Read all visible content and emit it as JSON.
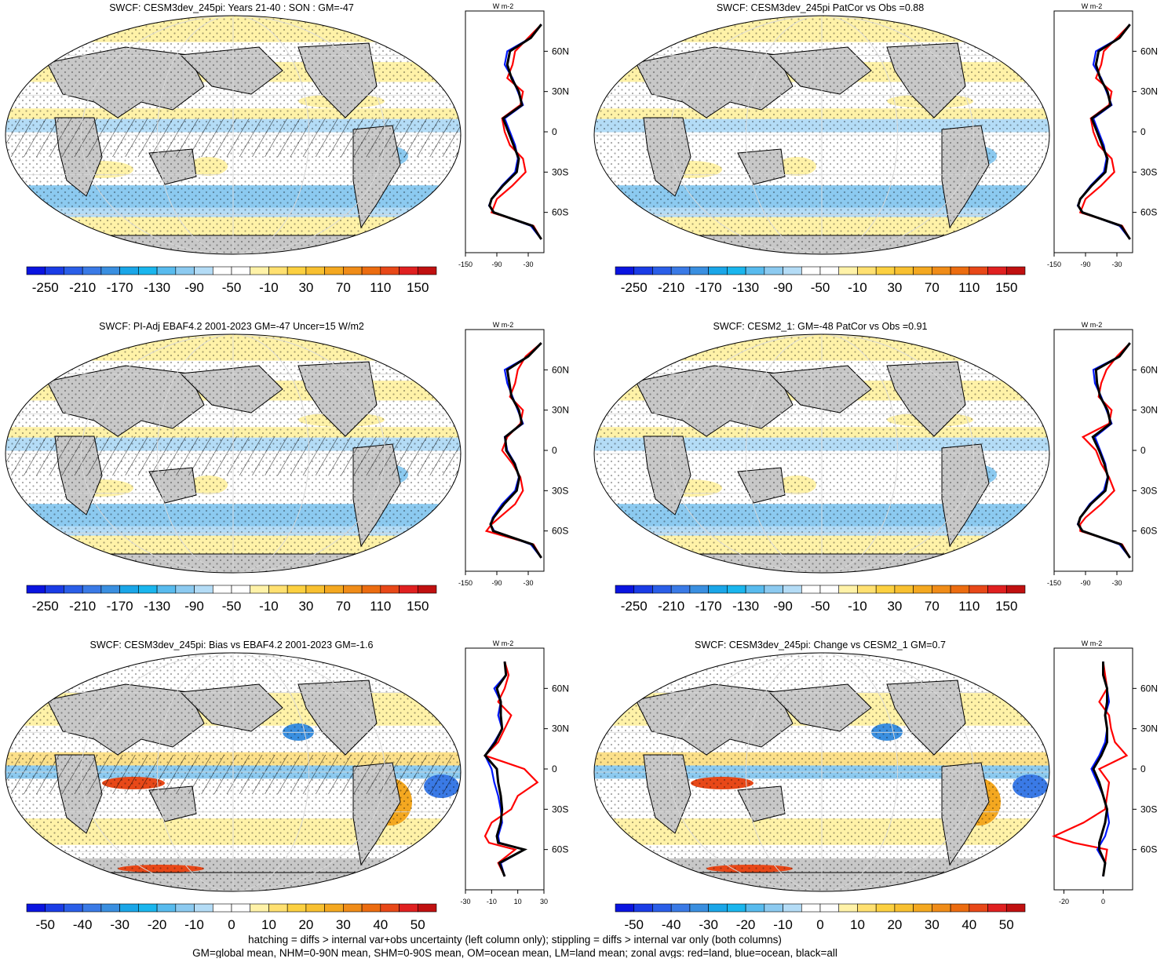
{
  "colors": {
    "scale_main": [
      "#0a14e0",
      "#1a3ce6",
      "#2a5ee8",
      "#3a7ae6",
      "#3a8fe0",
      "#1aa6e8",
      "#1ab6ee",
      "#58bbee",
      "#8ccaf0",
      "#b4dcf6",
      "#ffffff",
      "#ffffff",
      "#fff2a8",
      "#ffe070",
      "#fcd040",
      "#f8c030",
      "#f4a820",
      "#f08c18",
      "#ec6c10",
      "#e84818",
      "#e02020",
      "#c01010"
    ],
    "land": "#c8c8c8",
    "ocean_line": "#d8d8d8",
    "zonal_land": "#ff0000",
    "zonal_ocean": "#0018ff",
    "zonal_all": "#000000"
  },
  "panels": [
    {
      "id": "p1",
      "title": "SWCF: CESM3dev_245pi: Years 21-40 : SON : GM=-47",
      "colorbar_labels": [
        "-250",
        "-210",
        "-170",
        "-130",
        "-90",
        "-50",
        "-10",
        "30",
        "70",
        "110",
        "150"
      ],
      "zonal_units": "W m-2",
      "zonal_xticks": [
        "-150",
        "-90",
        "-30"
      ],
      "zonal_lat_ticks": [
        "60N",
        "30N",
        "0",
        "30S",
        "60S"
      ],
      "map_style": "mean",
      "hatched": true
    },
    {
      "id": "p2",
      "title": "SWCF: CESM3dev_245pi PatCor vs Obs =0.88",
      "colorbar_labels": [
        "-250",
        "-210",
        "-170",
        "-130",
        "-90",
        "-50",
        "-10",
        "30",
        "70",
        "110",
        "150"
      ],
      "zonal_units": "W m-2",
      "zonal_xticks": [
        "-150",
        "-90",
        "-30"
      ],
      "zonal_lat_ticks": [
        "60N",
        "30N",
        "0",
        "30S",
        "60S"
      ],
      "map_style": "mean",
      "hatched": false
    },
    {
      "id": "p3",
      "title": "SWCF: PI-Adj EBAF4.2 2001-2023 GM=-47 Uncer=15 W/m2",
      "colorbar_labels": [
        "-250",
        "-210",
        "-170",
        "-130",
        "-90",
        "-50",
        "-10",
        "30",
        "70",
        "110",
        "150"
      ],
      "zonal_units": "W m-2",
      "zonal_xticks": [
        "-150",
        "-90",
        "-30"
      ],
      "zonal_lat_ticks": [
        "60N",
        "30N",
        "0",
        "30S",
        "60S"
      ],
      "map_style": "mean",
      "hatched": true
    },
    {
      "id": "p4",
      "title": "SWCF: CESM2_1: GM=-48 PatCor vs Obs =0.91",
      "colorbar_labels": [
        "-250",
        "-210",
        "-170",
        "-130",
        "-90",
        "-50",
        "-10",
        "30",
        "70",
        "110",
        "150"
      ],
      "zonal_units": "W m-2",
      "zonal_xticks": [
        "-150",
        "-90",
        "-30"
      ],
      "zonal_lat_ticks": [
        "60N",
        "30N",
        "0",
        "30S",
        "60S"
      ],
      "map_style": "mean",
      "hatched": false
    },
    {
      "id": "p5",
      "title": "SWCF: CESM3dev_245pi: Bias vs EBAF4.2 2001-2023  GM=-1.6",
      "colorbar_labels": [
        "-50",
        "-40",
        "-30",
        "-20",
        "-10",
        "0",
        "10",
        "20",
        "30",
        "40",
        "50"
      ],
      "zonal_units": "W m-2",
      "zonal_xticks": [
        "-30",
        "-10",
        "10",
        "30"
      ],
      "zonal_lat_ticks": [
        "60N",
        "30N",
        "0",
        "30S",
        "60S"
      ],
      "map_style": "diff",
      "hatched": true
    },
    {
      "id": "p6",
      "title": "SWCF: CESM3dev_245pi: Change vs CESM2_1 GM=0.7",
      "colorbar_labels": [
        "-50",
        "-40",
        "-30",
        "-20",
        "-10",
        "0",
        "10",
        "20",
        "30",
        "40",
        "50"
      ],
      "zonal_units": "W m-2",
      "zonal_xticks": [
        "-20",
        "0"
      ],
      "zonal_lat_ticks": [
        "60N",
        "30N",
        "0",
        "30S",
        "60S"
      ],
      "map_style": "diff",
      "hatched": false
    }
  ],
  "footer": {
    "line1": "hatching = diffs > internal var+obs uncertainty (left column only); stippling = diffs > internal var only (both columns)",
    "line2": "GM=global mean, NHM=0-90N mean, SHM=0-90S mean, OM=ocean mean, LM=land mean; zonal avgs: red=land, blue=ocean, black=all"
  },
  "chart_data": [
    {
      "type": "heatmap",
      "title": "SWCF: CESM3dev_245pi: Years 21-40 : SON : GM=-47",
      "colorbar_ticks": [
        -250,
        -210,
        -170,
        -130,
        -90,
        -50,
        -10,
        30,
        70,
        110,
        150
      ],
      "zonal_mean": {
        "lat": [
          80,
          70,
          60,
          50,
          40,
          30,
          20,
          10,
          0,
          -10,
          -20,
          -30,
          -40,
          -50,
          -55,
          -60,
          -70,
          -80
        ],
        "series": [
          {
            "name": "land",
            "values": [
              -5,
              -30,
              -55,
              -60,
              -70,
              -40,
              -45,
              -80,
              -75,
              -65,
              -40,
              -35,
              -60,
              -90,
              -95,
              -100,
              -20,
              -5
            ]
          },
          {
            "name": "ocean",
            "values": [
              -5,
              -25,
              -70,
              -75,
              -60,
              -50,
              -40,
              -75,
              -65,
              -55,
              -50,
              -55,
              -80,
              -100,
              -105,
              -95,
              -25,
              -5
            ]
          },
          {
            "name": "all",
            "values": [
              -5,
              -25,
              -65,
              -70,
              -62,
              -48,
              -42,
              -78,
              -68,
              -58,
              -48,
              -52,
              -78,
              -100,
              -104,
              -96,
              -22,
              -5
            ]
          }
        ],
        "xlim": [
          -150,
          0
        ]
      }
    },
    {
      "type": "heatmap",
      "title": "SWCF: CESM3dev_245pi PatCor vs Obs =0.88",
      "colorbar_ticks": [
        -250,
        -210,
        -170,
        -130,
        -90,
        -50,
        -10,
        30,
        70,
        110,
        150
      ],
      "zonal_mean": {
        "lat": [
          80,
          70,
          60,
          50,
          40,
          30,
          20,
          10,
          0,
          -10,
          -20,
          -30,
          -40,
          -50,
          -55,
          -60,
          -70,
          -80
        ],
        "series": [
          {
            "name": "land",
            "values": [
              -5,
              -30,
              -55,
              -60,
              -70,
              -40,
              -45,
              -80,
              -75,
              -65,
              -40,
              -35,
              -60,
              -90,
              -95,
              -100,
              -20,
              -5
            ]
          },
          {
            "name": "ocean",
            "values": [
              -5,
              -25,
              -70,
              -75,
              -60,
              -50,
              -40,
              -75,
              -65,
              -55,
              -50,
              -55,
              -80,
              -100,
              -105,
              -95,
              -25,
              -5
            ]
          },
          {
            "name": "all",
            "values": [
              -5,
              -25,
              -65,
              -70,
              -62,
              -48,
              -42,
              -78,
              -68,
              -58,
              -48,
              -52,
              -78,
              -100,
              -104,
              -96,
              -22,
              -5
            ]
          }
        ],
        "xlim": [
          -150,
          0
        ]
      }
    },
    {
      "type": "heatmap",
      "title": "SWCF: PI-Adj EBAF4.2 2001-2023 GM=-47 Uncer=15 W/m2",
      "colorbar_ticks": [
        -250,
        -210,
        -170,
        -130,
        -90,
        -50,
        -10,
        30,
        70,
        110,
        150
      ],
      "zonal_mean": {
        "lat": [
          80,
          70,
          60,
          50,
          40,
          30,
          20,
          10,
          0,
          -10,
          -20,
          -30,
          -40,
          -50,
          -55,
          -60,
          -70,
          -80
        ],
        "series": [
          {
            "name": "land",
            "values": [
              -5,
              -35,
              -50,
              -55,
              -65,
              -40,
              -45,
              -70,
              -80,
              -60,
              -45,
              -40,
              -55,
              -85,
              -100,
              -110,
              -20,
              -5
            ]
          },
          {
            "name": "ocean",
            "values": [
              -5,
              -30,
              -75,
              -70,
              -60,
              -50,
              -40,
              -75,
              -70,
              -55,
              -48,
              -55,
              -80,
              -98,
              -102,
              -95,
              -25,
              -5
            ]
          },
          {
            "name": "all",
            "values": [
              -5,
              -30,
              -70,
              -66,
              -62,
              -48,
              -42,
              -74,
              -72,
              -56,
              -47,
              -52,
              -76,
              -96,
              -102,
              -97,
              -22,
              -5
            ]
          }
        ],
        "xlim": [
          -150,
          0
        ]
      }
    },
    {
      "type": "heatmap",
      "title": "SWCF: CESM2_1: GM=-48 PatCor vs Obs =0.91",
      "colorbar_ticks": [
        -250,
        -210,
        -170,
        -130,
        -90,
        -50,
        -10,
        30,
        70,
        110,
        150
      ],
      "zonal_mean": {
        "lat": [
          80,
          70,
          60,
          50,
          40,
          30,
          20,
          10,
          0,
          -10,
          -20,
          -30,
          -40,
          -50,
          -55,
          -60,
          -70,
          -80
        ],
        "series": [
          {
            "name": "land",
            "values": [
              -5,
              -30,
              -50,
              -60,
              -65,
              -40,
              -45,
              -95,
              -70,
              -60,
              -45,
              -35,
              -60,
              -90,
              -100,
              -100,
              -20,
              -5
            ]
          },
          {
            "name": "ocean",
            "values": [
              -5,
              -25,
              -75,
              -72,
              -60,
              -50,
              -40,
              -72,
              -62,
              -52,
              -48,
              -55,
              -82,
              -100,
              -105,
              -95,
              -25,
              -5
            ]
          },
          {
            "name": "all",
            "values": [
              -5,
              -25,
              -70,
              -68,
              -62,
              -48,
              -42,
              -76,
              -64,
              -54,
              -47,
              -52,
              -80,
              -100,
              -104,
              -96,
              -22,
              -5
            ]
          }
        ],
        "xlim": [
          -150,
          0
        ]
      }
    },
    {
      "type": "heatmap",
      "title": "SWCF: CESM3dev_245pi: Bias vs EBAF4.2 2001-2023  GM=-1.6",
      "colorbar_ticks": [
        -50,
        -40,
        -30,
        -20,
        -10,
        0,
        10,
        20,
        30,
        40,
        50
      ],
      "zonal_mean": {
        "lat": [
          80,
          70,
          60,
          50,
          40,
          30,
          20,
          10,
          0,
          -10,
          -20,
          -30,
          -40,
          -50,
          -55,
          -60,
          -70,
          -80
        ],
        "series": [
          {
            "name": "land",
            "values": [
              0,
              3,
              0,
              -5,
              5,
              0,
              -5,
              -15,
              15,
              25,
              10,
              5,
              -10,
              -15,
              -12,
              8,
              -5,
              0
            ]
          },
          {
            "name": "ocean",
            "values": [
              0,
              1,
              -8,
              -3,
              -5,
              -2,
              -8,
              -15,
              -10,
              -8,
              -5,
              -3,
              -2,
              -5,
              -4,
              15,
              -3,
              0
            ]
          },
          {
            "name": "all",
            "values": [
              0,
              1,
              -6,
              -3,
              -3,
              -2,
              -7,
              -15,
              -6,
              -5,
              -3,
              -2,
              -3,
              -6,
              -5,
              15,
              -4,
              0
            ]
          }
        ],
        "xlim": [
          -30,
          30
        ]
      }
    },
    {
      "type": "heatmap",
      "title": "SWCF: CESM3dev_245pi: Change vs CESM2_1 GM=0.7",
      "colorbar_ticks": [
        -50,
        -40,
        -30,
        -20,
        -10,
        0,
        10,
        20,
        30,
        40,
        50
      ],
      "zonal_mean": {
        "lat": [
          80,
          70,
          60,
          50,
          40,
          30,
          20,
          10,
          0,
          -10,
          -20,
          -30,
          -40,
          -50,
          -55,
          -60,
          -70,
          -80
        ],
        "series": [
          {
            "name": "land",
            "values": [
              0,
              1,
              2,
              -2,
              3,
              4,
              6,
              12,
              -2,
              3,
              2,
              1,
              -10,
              -25,
              -15,
              2,
              1,
              0
            ]
          },
          {
            "name": "ocean",
            "values": [
              0,
              0,
              2,
              3,
              1,
              2,
              1,
              -2,
              -6,
              -3,
              0,
              2,
              3,
              1,
              -1,
              -3,
              1,
              0
            ]
          },
          {
            "name": "all",
            "values": [
              0,
              0,
              2,
              2,
              1,
              2,
              2,
              -1,
              -5,
              -2,
              0,
              2,
              1,
              -1,
              -2,
              -2,
              1,
              0
            ]
          }
        ],
        "xlim": [
          -25,
          15
        ]
      }
    }
  ]
}
